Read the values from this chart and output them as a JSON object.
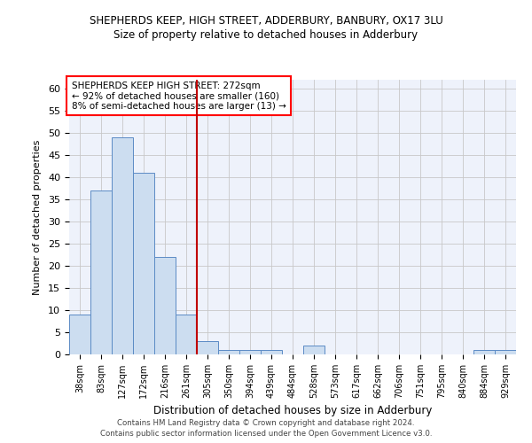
{
  "title": "SHEPHERDS KEEP, HIGH STREET, ADDERBURY, BANBURY, OX17 3LU",
  "subtitle": "Size of property relative to detached houses in Adderbury",
  "xlabel": "Distribution of detached houses by size in Adderbury",
  "ylabel": "Number of detached properties",
  "categories": [
    "38sqm",
    "83sqm",
    "127sqm",
    "172sqm",
    "216sqm",
    "261sqm",
    "305sqm",
    "350sqm",
    "394sqm",
    "439sqm",
    "484sqm",
    "528sqm",
    "573sqm",
    "617sqm",
    "662sqm",
    "706sqm",
    "751sqm",
    "795sqm",
    "840sqm",
    "884sqm",
    "929sqm"
  ],
  "values": [
    9,
    37,
    49,
    41,
    22,
    9,
    3,
    1,
    1,
    1,
    0,
    2,
    0,
    0,
    0,
    0,
    0,
    0,
    0,
    1,
    1
  ],
  "bar_color": "#ccddf0",
  "bar_edge_color": "#5b8bc5",
  "grid_color": "#c8c8c8",
  "background_color": "#eef2fb",
  "vline_x_index": 5.5,
  "vline_color": "#c00000",
  "annotation_text": "SHEPHERDS KEEP HIGH STREET: 272sqm\n← 92% of detached houses are smaller (160)\n8% of semi-detached houses are larger (13) →",
  "annotation_box_color": "white",
  "annotation_box_edge_color": "red",
  "ylim": [
    0,
    62
  ],
  "yticks": [
    0,
    5,
    10,
    15,
    20,
    25,
    30,
    35,
    40,
    45,
    50,
    55,
    60
  ],
  "footer1": "Contains HM Land Registry data © Crown copyright and database right 2024.",
  "footer2": "Contains public sector information licensed under the Open Government Licence v3.0."
}
